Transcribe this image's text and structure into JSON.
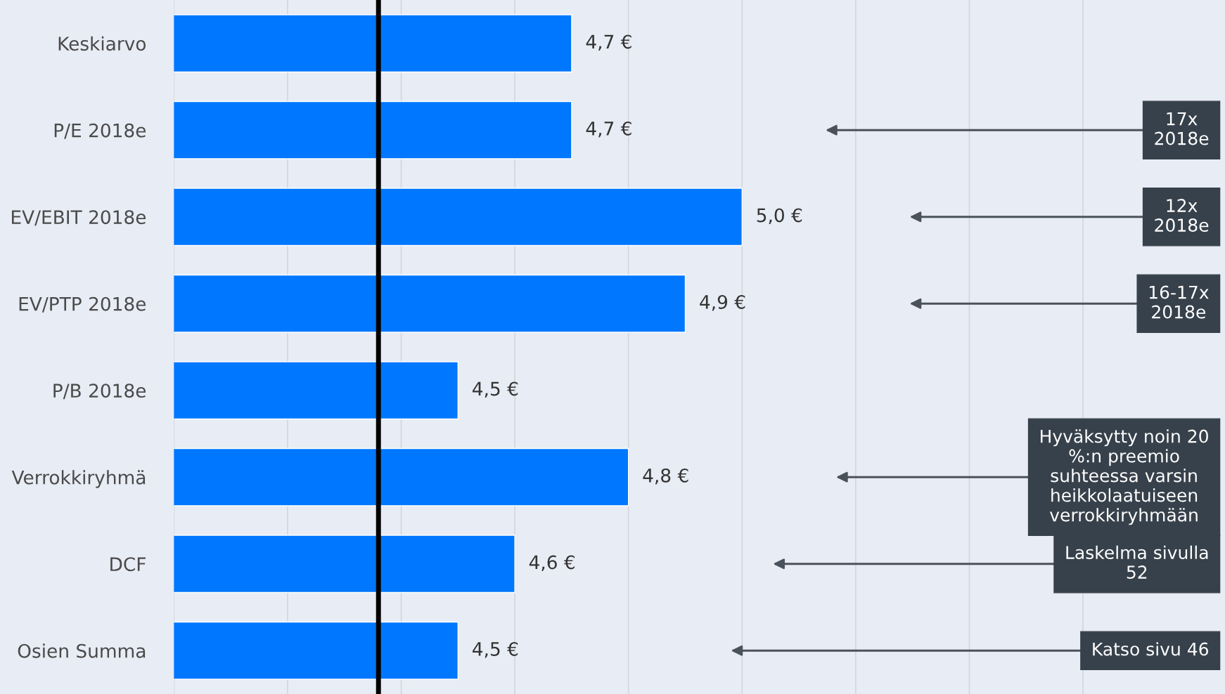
{
  "chart_data": {
    "type": "bar",
    "orientation": "horizontal",
    "categories": [
      "Keskiarvo",
      "P/E 2018e",
      "EV/EBIT 2018e",
      "EV/PTP 2018e",
      "P/B 2018e",
      "Verrokkiryhmä",
      "DCF",
      "Osien Summa"
    ],
    "values": [
      4.7,
      4.7,
      5.0,
      4.9,
      4.5,
      4.8,
      4.6,
      4.5
    ],
    "value_labels": [
      "4,7 €",
      "4,7 €",
      "5,0 €",
      "4,9 €",
      "4,5 €",
      "4,8 €",
      "4,6 €",
      "4,5 €"
    ],
    "color": "#0077ff",
    "xlim": [
      4.0,
      5.85
    ],
    "xticks": [
      {
        "value": 4.0,
        "label": null
      },
      {
        "value": 4.2,
        "label": null
      },
      {
        "value": 4.4,
        "label": null
      },
      {
        "value": 4.6,
        "label": null
      },
      {
        "value": 4.8,
        "label": null
      },
      {
        "value": 5.0,
        "label": null
      },
      {
        "value": 5.2,
        "label": null
      },
      {
        "value": 5.4,
        "label": null
      },
      {
        "value": 5.6,
        "label": null
      }
    ],
    "grid": "x",
    "tick_labels": "y",
    "ref_lines": [
      {
        "axis": "x",
        "value": 4.36,
        "color": "#000000"
      }
    ],
    "annotations": [
      "17x\n2018e",
      "12x\n2018e",
      "16-17x\n2018e",
      "Hyväksytty noin 20\n%:n preemio\nsuhteessa varsin\nheikkolaatuiseen\nverrokkiryhmään",
      "Laskelma sivulla\n52",
      "Katso sivu 46"
    ]
  }
}
